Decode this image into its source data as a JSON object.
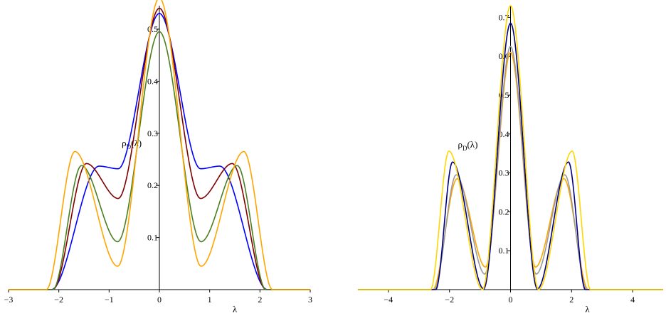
{
  "chart_data": [
    {
      "type": "line",
      "xlabel": "λ",
      "annotation": {
        "base": "ρ",
        "sub": "D",
        "rest": "(λ)",
        "x": -0.55,
        "y": 0.275
      },
      "xlim": [
        -3,
        3
      ],
      "ylim": [
        0,
        0.545
      ],
      "x_ticks": [
        -3,
        -2,
        -1,
        0,
        1,
        2,
        3
      ],
      "x_tick_labels": [
        "−3",
        "−2",
        "−1",
        "0",
        "1",
        "2",
        "3"
      ],
      "y_ticks": [
        0.1,
        0.2,
        0.3,
        0.4,
        0.5
      ],
      "y_tick_labels": [
        "0.1",
        "0.2",
        "0.3",
        "0.4",
        "0.5"
      ],
      "grid": false,
      "series": [
        {
          "color": "#0000ff",
          "peak": 0.53,
          "side_x": 1.2,
          "side_y": 0.237,
          "dip_x": 0.82,
          "dip_y": 0.232,
          "edge": 2.15
        },
        {
          "color": "#800000",
          "peak": 0.54,
          "side_x": 1.45,
          "side_y": 0.242,
          "dip_x": 0.82,
          "dip_y": 0.175,
          "edge": 2.12
        },
        {
          "color": "#4b7f1f",
          "peak": 0.495,
          "side_x": 1.55,
          "side_y": 0.238,
          "dip_x": 0.83,
          "dip_y": 0.092,
          "edge": 2.12
        },
        {
          "color": "#ffa500",
          "peak": 0.56,
          "side_x": 1.68,
          "side_y": 0.265,
          "dip_x": 0.83,
          "dip_y": 0.045,
          "edge": 2.25
        }
      ]
    },
    {
      "type": "line",
      "xlabel": "λ",
      "annotation": {
        "base": "ρ",
        "sub": "D",
        "rest": "(λ)",
        "x": -1.4,
        "y": 0.365
      },
      "xlim": [
        -5,
        5
      ],
      "ylim": [
        0,
        0.73
      ],
      "x_ticks": [
        -4,
        -2,
        0,
        2,
        4
      ],
      "x_tick_labels": [
        "−4",
        "−2",
        "0",
        "2",
        "4"
      ],
      "y_ticks": [
        0.1,
        0.2,
        0.3,
        0.4,
        0.5,
        0.6,
        0.7
      ],
      "y_tick_labels": [
        "0.1",
        "0.2",
        "0.3",
        "0.4",
        "0.5",
        "0.6",
        "0.7"
      ],
      "grid": false,
      "series": [
        {
          "color": "#ffa500",
          "peak": 0.61,
          "side_x": 1.75,
          "side_y": 0.285,
          "dip_x": 0.82,
          "dip_y": 0.058,
          "edge": 2.55
        },
        {
          "color": "#999999",
          "peak": 0.625,
          "side_x": 1.78,
          "side_y": 0.295,
          "dip_x": 0.84,
          "dip_y": 0.04,
          "edge": 2.5
        },
        {
          "color": "#000080",
          "peak": 0.685,
          "side_x": 1.9,
          "side_y": 0.328,
          "dip_x": 0.88,
          "dip_y": 0.002,
          "edge": 2.45
        },
        {
          "color": "#ffd700",
          "peak": 0.73,
          "side_x": 2.02,
          "side_y": 0.356,
          "dip_x": 0.92,
          "dip_y": 0.0,
          "edge": 2.62
        }
      ]
    }
  ]
}
